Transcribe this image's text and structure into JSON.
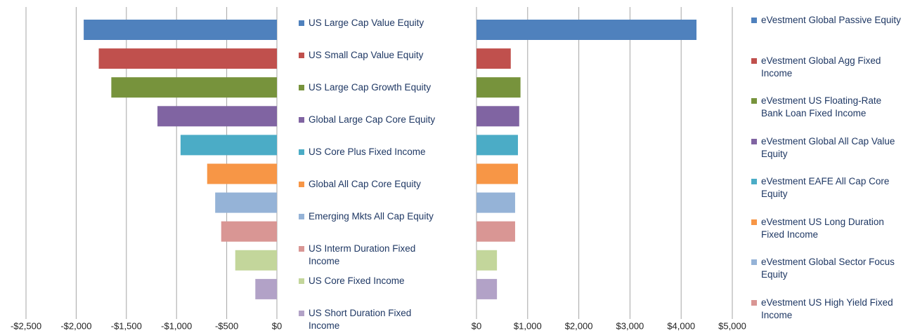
{
  "chart_data": [
    {
      "type": "bar",
      "orientation": "horizontal",
      "categories": [
        "US Large Cap Value Equity",
        "US Small Cap Value Equity",
        "US Large Cap Growth Equity",
        "Global Large Cap Core Equity",
        "US Core Plus Fixed Income",
        "Global All Cap Core Equity",
        "Emerging Mkts All Cap Equity",
        "US Interm Duration Fixed Income",
        "US Core Fixed Income",
        "US Short Duration Fixed Income"
      ],
      "values": [
        -1925,
        -1775,
        -1650,
        -1190,
        -960,
        -695,
        -615,
        -555,
        -415,
        -215
      ],
      "colors": [
        "#4f81bd",
        "#c0504d",
        "#77933c",
        "#8064a2",
        "#4bacc6",
        "#f79646",
        "#95b3d7",
        "#d99694",
        "#c3d69b",
        "#b2a2c7"
      ],
      "xlim": [
        -2500,
        0
      ],
      "xticks": [
        {
          "value": -2500,
          "label": "-$2,500"
        },
        {
          "value": -2000,
          "label": "-$2,000"
        },
        {
          "value": -1500,
          "label": "-$1,500"
        },
        {
          "value": -1000,
          "label": "-$1,000"
        },
        {
          "value": -500,
          "label": "-$500"
        },
        {
          "value": 0,
          "label": "$0"
        }
      ],
      "grid": true,
      "legend": "right"
    },
    {
      "type": "bar",
      "orientation": "horizontal",
      "categories": [
        "eVestment Global Passive Equity",
        "eVestment Global Agg Fixed Income",
        "eVestment US Floating-Rate Bank Loan Fixed Income",
        "eVestment Global All Cap Value Equity",
        "eVestment EAFE All Cap Core Equity",
        "eVestment US Long Duration Fixed Income",
        "eVestment Global Sector Focus Equity",
        "eVestment US High Yield Fixed Income",
        null,
        null
      ],
      "values": [
        4300,
        670,
        860,
        835,
        810,
        810,
        755,
        755,
        400,
        400
      ],
      "colors": [
        "#4f81bd",
        "#c0504d",
        "#77933c",
        "#8064a2",
        "#4bacc6",
        "#f79646",
        "#95b3d7",
        "#d99694",
        "#c3d69b",
        "#b2a2c7"
      ],
      "xlim": [
        0,
        5000
      ],
      "xticks": [
        {
          "value": 0,
          "label": "$0"
        },
        {
          "value": 1000,
          "label": "$1,000"
        },
        {
          "value": 2000,
          "label": "$2,000"
        },
        {
          "value": 3000,
          "label": "$3,000"
        },
        {
          "value": 4000,
          "label": "$4,000"
        },
        {
          "value": 5000,
          "label": "$5,000"
        }
      ],
      "grid": true,
      "legend": "right"
    }
  ]
}
